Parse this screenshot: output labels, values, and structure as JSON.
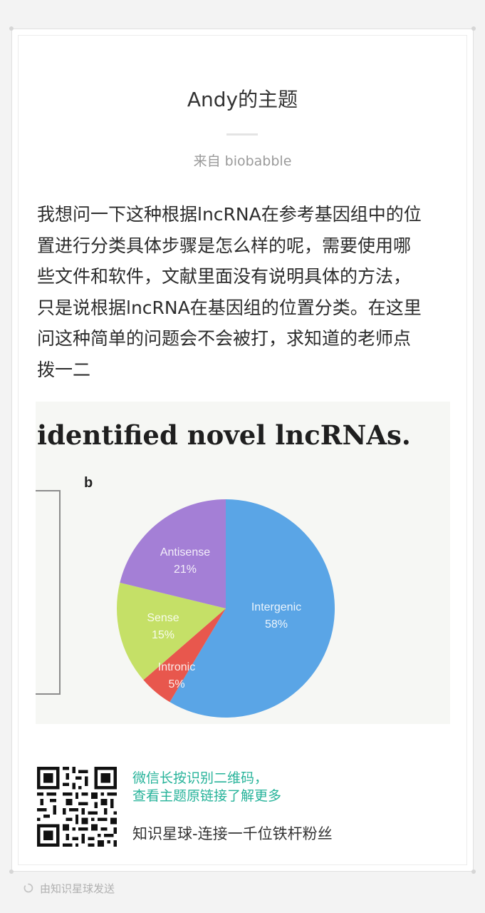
{
  "post": {
    "title": "Andy的主题",
    "source": "来自 biobabble",
    "body_lines": [
      "我想问一下这种根据lncRNA在参考基因组中的位",
      "置进行分类具体步骤是怎么样的呢，需要使用哪",
      "些文件和软件，文献里面没有说明具体的方法，",
      "只是说根据lncRNA在基因组的位置分类。在这里",
      "问这种简单的问题会不会被打，求知道的老师点",
      "拨一二"
    ]
  },
  "figure": {
    "heading": "identified novel lncRNAs.",
    "panel_label": "b"
  },
  "chart_data": {
    "type": "pie",
    "categories": [
      "Intergenic",
      "Intronic",
      "Sense",
      "Antisense"
    ],
    "values": [
      58,
      5,
      15,
      21
    ],
    "value_labels": [
      "58%",
      "5%",
      "15%",
      "21%"
    ],
    "colors": [
      "#5aa5e6",
      "#e8574d",
      "#c5e067",
      "#a47fd6"
    ]
  },
  "share": {
    "qr_hint_line1": "微信长按识别二维码，",
    "qr_hint_line2": "查看主题原链接了解更多",
    "planet_tagline": "知识星球-连接一千位铁杆粉丝",
    "hint_color": "#27b39a"
  },
  "footer": {
    "sent_via": "由知识星球发送",
    "icon": "loading-ring-icon"
  }
}
